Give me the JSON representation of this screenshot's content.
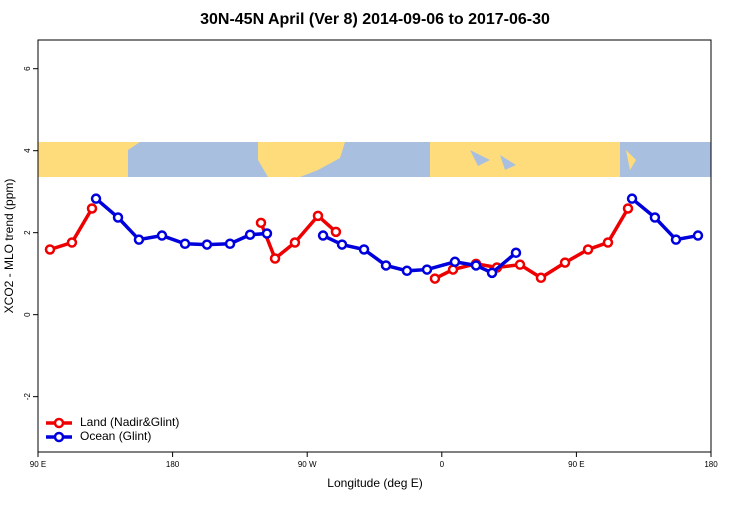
{
  "chart_data": {
    "type": "line",
    "title": "30N-45N April (Ver 8)   2014-09-06 to 2017-06-30",
    "x_label": "Longitude (deg E)",
    "y_label": "XCO2 - MLO trend (ppm)",
    "xlim": [
      90,
      540
    ],
    "xticks": [
      {
        "value": 90,
        "label": "90 E"
      },
      {
        "value": 180,
        "label": "180"
      },
      {
        "value": 270,
        "label": "90 W"
      },
      {
        "value": 360,
        "label": "0"
      },
      {
        "value": 450,
        "label": "90 E"
      },
      {
        "value": 540,
        "label": "180"
      }
    ],
    "ylim": [
      -3.35,
      6.7
    ],
    "yticks": [
      -2,
      0,
      2,
      4,
      6
    ],
    "legend": "bottom-left",
    "series": [
      {
        "name": "Land (Nadir&Glint)",
        "color": "#ee0000",
        "x": [
          98.0,
          112.7,
          126.1,
          null,
          239.1,
          248.5,
          261.8,
          277.2,
          289.2,
          null,
          355.4,
          367.5,
          382.9,
          396.9,
          412.3,
          426.3,
          442.4,
          457.8,
          471.1,
          484.5
        ],
        "values": [
          1.59,
          1.76,
          2.59,
          null,
          2.24,
          1.37,
          1.76,
          2.41,
          2.02,
          null,
          0.88,
          1.1,
          1.24,
          1.15,
          1.22,
          0.9,
          1.27,
          1.59,
          1.76,
          2.59
        ]
      },
      {
        "name": "Ocean (Glint)",
        "color": "#0000dd",
        "x": [
          128.8,
          143.5,
          157.5,
          172.9,
          188.3,
          203.0,
          218.4,
          231.8,
          243.1,
          null,
          280.6,
          293.3,
          308.0,
          322.7,
          336.7,
          350.1,
          368.8,
          382.9,
          393.6,
          409.6,
          null,
          487.2,
          502.5,
          516.6,
          531.3
        ],
        "values": [
          2.83,
          2.37,
          1.83,
          1.93,
          1.73,
          1.71,
          1.73,
          1.95,
          1.98,
          null,
          1.93,
          1.71,
          1.59,
          1.2,
          1.07,
          1.1,
          1.29,
          1.2,
          1.02,
          1.51,
          null,
          2.83,
          2.37,
          1.83,
          1.93
        ]
      }
    ]
  }
}
